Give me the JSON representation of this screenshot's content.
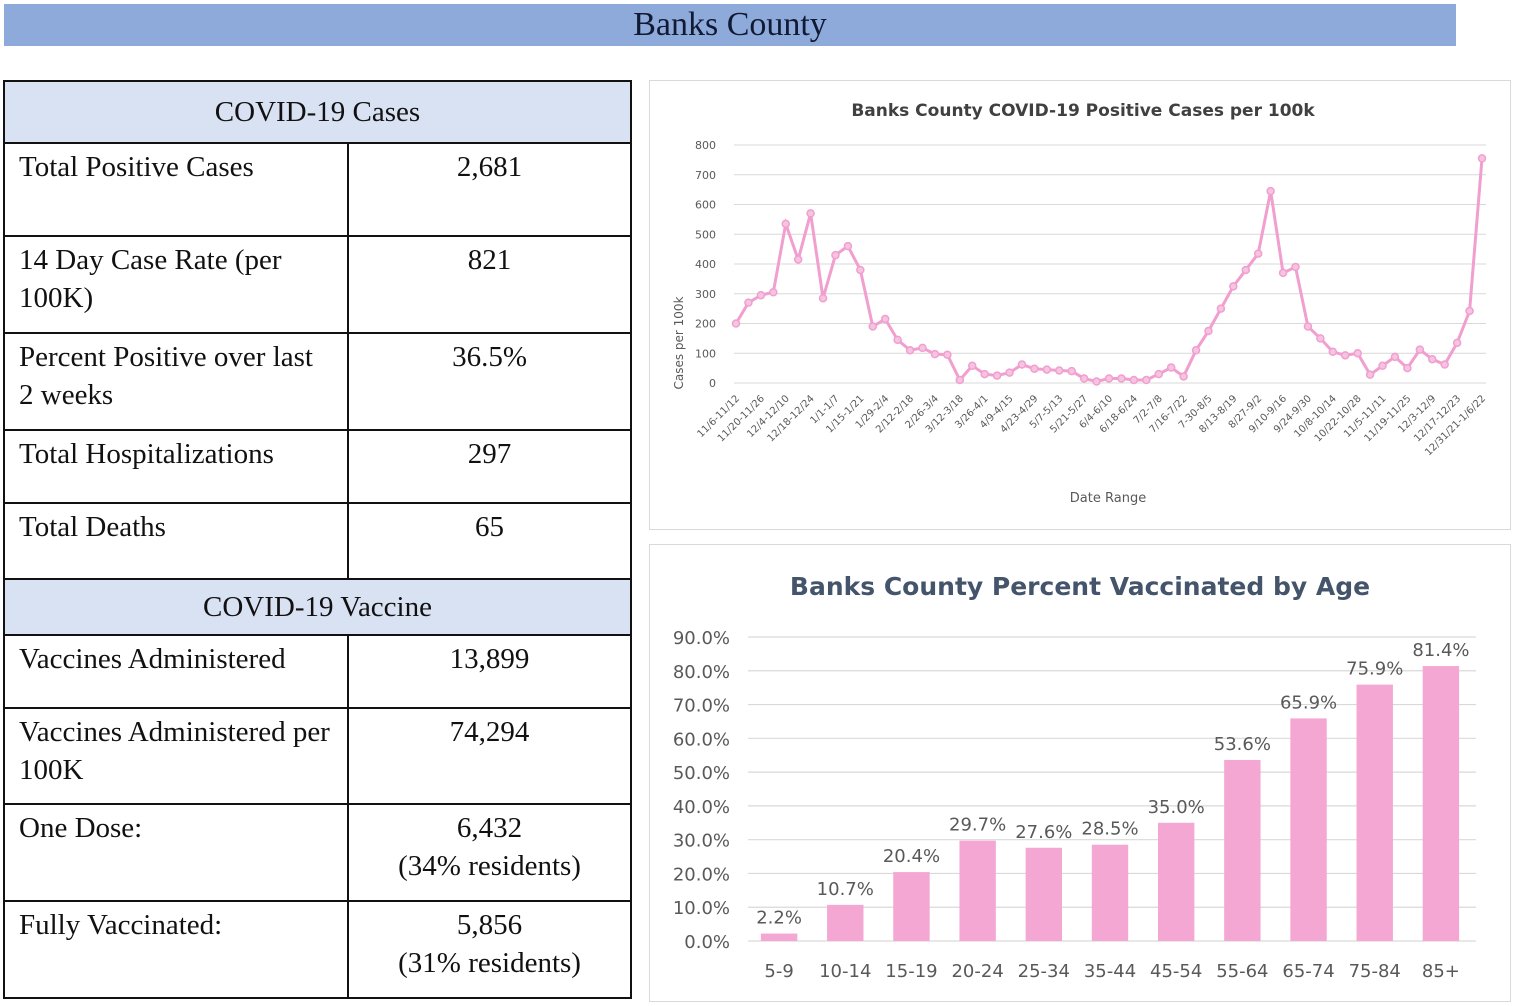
{
  "header": {
    "title": "Banks County"
  },
  "cases_table": {
    "heading": "COVID-19 Cases",
    "rows": [
      {
        "label": "Total Positive Cases",
        "value": "2,681"
      },
      {
        "label": "14 Day Case Rate (per 100K)",
        "value": "821"
      },
      {
        "label": "Percent Positive over last 2 weeks",
        "value": "36.5%"
      },
      {
        "label": "Total Hospitalizations",
        "value": "297"
      },
      {
        "label": "Total Deaths",
        "value": "65"
      }
    ]
  },
  "vaccine_table": {
    "heading": "COVID-19 Vaccine",
    "rows": [
      {
        "label": "Vaccines Administered",
        "value": "13,899",
        "sub": ""
      },
      {
        "label": "Vaccines Administered per 100K",
        "value": "74,294",
        "sub": ""
      },
      {
        "label": "One Dose:",
        "value": "6,432",
        "sub": "(34% residents)"
      },
      {
        "label": "Fully Vaccinated:",
        "value": "5,856",
        "sub": "(31% residents)"
      }
    ]
  },
  "colors": {
    "banner": "#8eaadb",
    "table_header": "#d9e2f3",
    "series": "#f4a7d3",
    "line": "#f09fcf"
  },
  "chart_data": [
    {
      "type": "line",
      "title": "Banks County COVID-19 Positive Cases per 100k",
      "xlabel": "Date Range",
      "ylabel": "Cases per 100k",
      "ylim": [
        0,
        800
      ],
      "yticks": [
        0,
        100,
        200,
        300,
        400,
        500,
        600,
        700,
        800
      ],
      "grid": true,
      "tick_labels": [
        "11/6-11/12",
        "11/20-11/26",
        "12/4-12/10",
        "12/18-12/24",
        "1/1-1/7",
        "1/15-1/21",
        "1/29-2/4",
        "2/12-2/18",
        "2/26-3/4",
        "3/12-3/18",
        "3/26-4/1",
        "4/9-4/15",
        "4/23-4/29",
        "5/7-5/13",
        "5/21-5/27",
        "6/4-6/10",
        "6/18-6/24",
        "7/2-7/8",
        "7/16-7/22",
        "7-30-8/5",
        "8/13-8/19",
        "8/27-9/2",
        "9/10-9/16",
        "9/24-9/30",
        "10/8-10/14",
        "10/22-10/28",
        "11/5-11/11",
        "11/19-11/25",
        "12/3-12/9",
        "12/17-12/23",
        "12/31/21-1/6/22"
      ],
      "series": [
        {
          "name": "Cases per 100k",
          "values": [
            200,
            270,
            295,
            305,
            535,
            415,
            570,
            285,
            430,
            460,
            380,
            190,
            215,
            145,
            110,
            118,
            97,
            95,
            10,
            58,
            30,
            25,
            35,
            62,
            48,
            45,
            42,
            40,
            15,
            5,
            15,
            15,
            10,
            10,
            30,
            52,
            22,
            110,
            175,
            250,
            325,
            380,
            435,
            645,
            370,
            390,
            190,
            150,
            105,
            93,
            100,
            28,
            58,
            88,
            50,
            112,
            80,
            62,
            135,
            242,
            755
          ]
        }
      ]
    },
    {
      "type": "bar",
      "title": "Banks County  Percent Vaccinated by Age",
      "xlabel": "",
      "ylabel": "",
      "ylim": [
        0,
        90
      ],
      "yticks": [
        "0.0%",
        "10.0%",
        "20.0%",
        "30.0%",
        "40.0%",
        "50.0%",
        "60.0%",
        "70.0%",
        "80.0%",
        "90.0%"
      ],
      "grid": true,
      "categories": [
        "5-9",
        "10-14",
        "15-19",
        "20-24",
        "25-34",
        "35-44",
        "45-54",
        "55-64",
        "65-74",
        "75-84",
        "85+"
      ],
      "values": [
        2.2,
        10.7,
        20.4,
        29.7,
        27.6,
        28.5,
        35.0,
        53.6,
        65.9,
        75.9,
        81.4
      ],
      "labels": [
        "2.2%",
        "10.7%",
        "20.4%",
        "29.7%",
        "27.6%",
        "28.5%",
        "35.0%",
        "53.6%",
        "65.9%",
        "75.9%",
        "81.4%"
      ]
    }
  ]
}
